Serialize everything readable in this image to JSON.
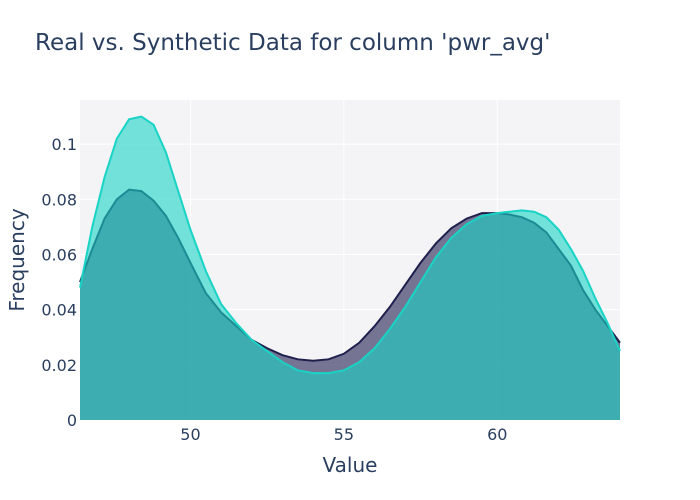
{
  "chart_data": {
    "type": "area",
    "title": "Real vs. Synthetic Data for column 'pwr_avg'",
    "xlabel": "Value",
    "ylabel": "Frequency",
    "xlim": [
      46.4,
      64.0
    ],
    "ylim": [
      0,
      0.116
    ],
    "x_ticks": [
      50,
      55,
      60
    ],
    "y_ticks": [
      0,
      0.02,
      0.04,
      0.06,
      0.08,
      0.1
    ],
    "y_tick_labels": [
      "0",
      "0.02",
      "0.04",
      "0.06",
      "0.08",
      "0.1"
    ],
    "x_tick_labels": [
      "50",
      "55",
      "60"
    ],
    "grid": true,
    "legend": "none",
    "series": [
      {
        "color": "#1f1f4d",
        "fill": "rgba(32, 30, 80, 0.6)",
        "x": [
          46.4,
          46.8,
          47.2,
          47.6,
          48.0,
          48.4,
          48.8,
          49.2,
          49.6,
          50.0,
          50.5,
          51.0,
          51.5,
          52.0,
          52.5,
          53.0,
          53.5,
          54.0,
          54.5,
          55.0,
          55.5,
          56.0,
          56.5,
          57.0,
          57.5,
          58.0,
          58.5,
          59.0,
          59.5,
          60.0,
          60.4,
          60.8,
          61.2,
          61.6,
          62.0,
          62.4,
          62.8,
          63.2,
          63.6,
          64.0
        ],
        "y": [
          0.05,
          0.062,
          0.073,
          0.08,
          0.0835,
          0.083,
          0.0795,
          0.074,
          0.066,
          0.057,
          0.046,
          0.039,
          0.034,
          0.029,
          0.026,
          0.0235,
          0.022,
          0.0215,
          0.022,
          0.024,
          0.028,
          0.034,
          0.041,
          0.049,
          0.057,
          0.064,
          0.0695,
          0.073,
          0.075,
          0.075,
          0.0745,
          0.0735,
          0.0715,
          0.068,
          0.062,
          0.056,
          0.047,
          0.04,
          0.034,
          0.028
        ]
      },
      {
        "color": "#19d3c5",
        "fill": "rgba(25, 211, 197, 0.6)",
        "x": [
          46.4,
          46.8,
          47.2,
          47.6,
          48.0,
          48.4,
          48.8,
          49.2,
          49.6,
          50.0,
          50.5,
          51.0,
          51.5,
          52.0,
          52.5,
          53.0,
          53.5,
          54.0,
          54.5,
          55.0,
          55.5,
          56.0,
          56.5,
          57.0,
          57.5,
          58.0,
          58.5,
          59.0,
          59.5,
          60.0,
          60.4,
          60.8,
          61.2,
          61.6,
          62.0,
          62.4,
          62.8,
          63.2,
          63.6,
          64.0
        ],
        "y": [
          0.048,
          0.07,
          0.088,
          0.102,
          0.109,
          0.11,
          0.107,
          0.097,
          0.083,
          0.069,
          0.054,
          0.042,
          0.035,
          0.029,
          0.025,
          0.021,
          0.018,
          0.017,
          0.017,
          0.018,
          0.021,
          0.026,
          0.033,
          0.041,
          0.05,
          0.059,
          0.066,
          0.071,
          0.074,
          0.075,
          0.0755,
          0.076,
          0.0755,
          0.0735,
          0.069,
          0.062,
          0.054,
          0.044,
          0.035,
          0.025
        ]
      }
    ]
  }
}
